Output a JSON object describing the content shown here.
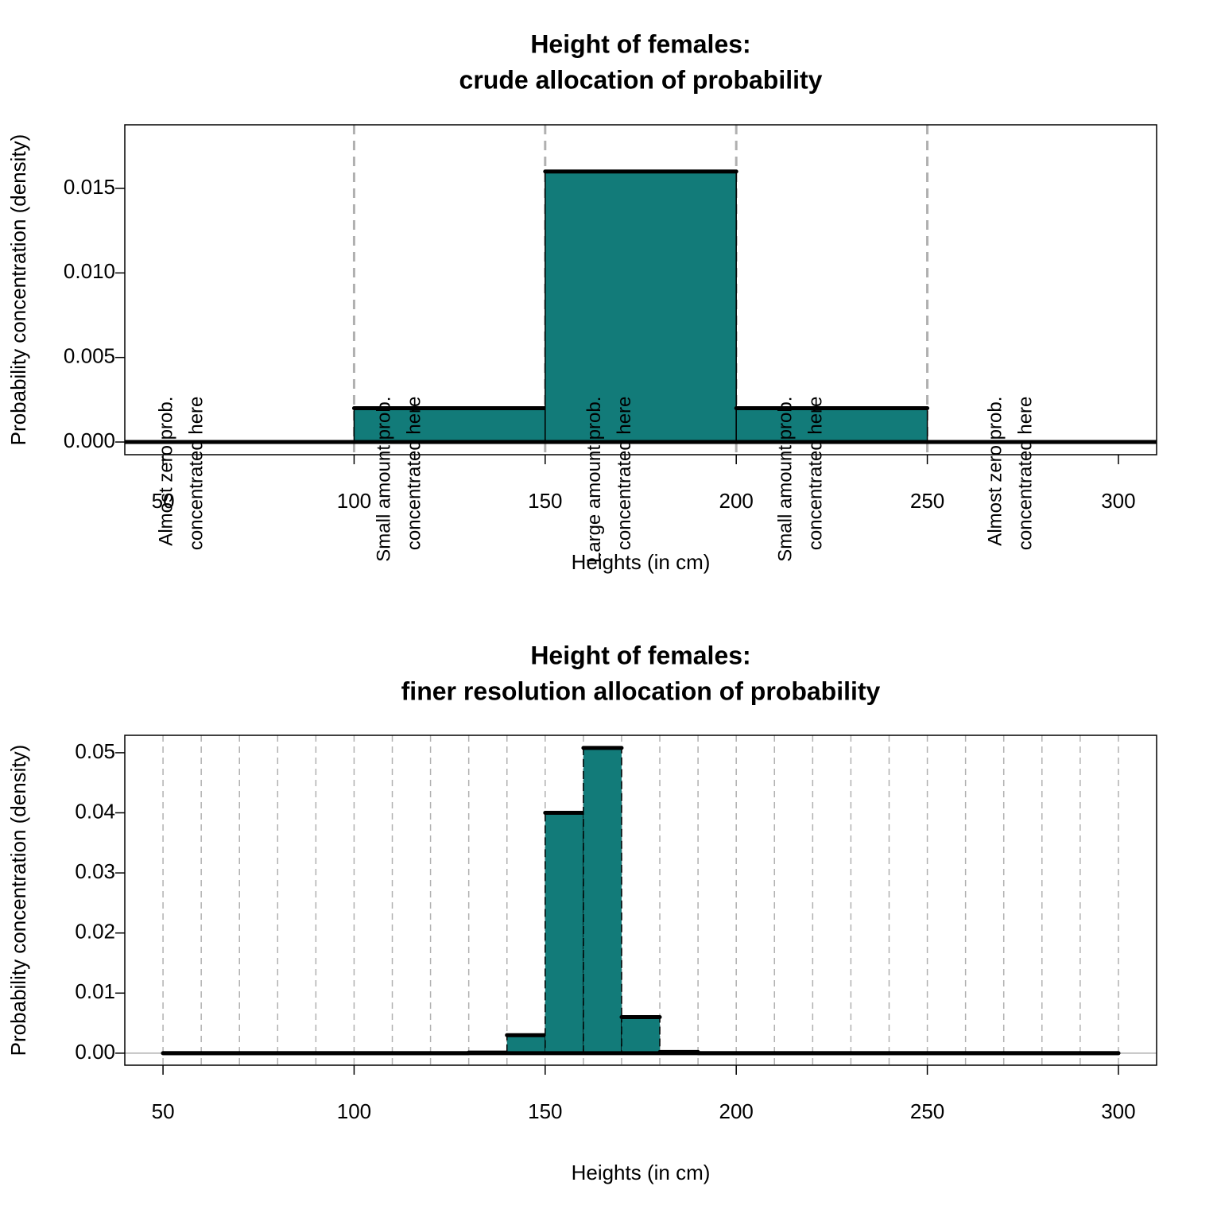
{
  "chart_data": [
    {
      "type": "histogram",
      "title": [
        "Height of females:",
        "crude allocation of probability"
      ],
      "xlabel": "Heights (in cm)",
      "ylabel": "Probability concentration (density)",
      "bins": [
        100,
        150,
        200,
        250
      ],
      "counts": [
        0.002,
        0.016,
        0.002
      ],
      "color": "#127b79",
      "xlim": [
        40,
        310
      ],
      "ylim": [
        -0.00075,
        0.01876
      ],
      "xticks": [
        50,
        100,
        150,
        200,
        250,
        300
      ],
      "yticks": [
        {
          "value": 0,
          "label": "0.000"
        },
        0.005,
        {
          "value": 0.01,
          "label": "0.010"
        },
        0.015
      ],
      "vlines": [
        100,
        150,
        200,
        250
      ],
      "annotations": [
        [
          "Almost zero prob.",
          "concentrated here"
        ],
        [
          "Small amount prob.",
          "concentrated here"
        ],
        [
          "Large amount prob.",
          "concentrated here"
        ],
        [
          "Small amount prob.",
          "concentrated here"
        ],
        [
          "Almost zero prob.",
          "concentrated here"
        ]
      ]
    },
    {
      "type": "histogram",
      "title": [
        "Height of females:",
        "finer resolution allocation of probability"
      ],
      "xlabel": "Heights (in cm)",
      "ylabel": "Probability concentration (density)",
      "bins": [
        50,
        60,
        70,
        80,
        90,
        100,
        110,
        120,
        130,
        140,
        150,
        160,
        170,
        180,
        190,
        200,
        210,
        220,
        230,
        240,
        250,
        260,
        270,
        280,
        290,
        300
      ],
      "counts": [
        0,
        0,
        0,
        0,
        0,
        0,
        0,
        0,
        0.0001,
        0.003,
        0.04,
        0.0508,
        0.006,
        0.0002,
        0,
        0,
        0,
        0,
        0,
        0,
        0,
        0,
        0,
        0,
        0
      ],
      "color": "#127b79",
      "xlim": [
        40,
        310
      ],
      "ylim": [
        -0.002,
        0.0529
      ],
      "xticks": [
        50,
        100,
        150,
        200,
        250,
        300
      ],
      "yticks": [
        {
          "value": 0,
          "label": "0.00"
        },
        0.01,
        0.02,
        0.03,
        0.04,
        0.05
      ],
      "vlines": [
        50,
        60,
        70,
        80,
        90,
        100,
        110,
        120,
        130,
        140,
        150,
        160,
        170,
        180,
        190,
        200,
        210,
        220,
        230,
        240,
        250,
        260,
        270,
        280,
        290,
        300
      ]
    }
  ]
}
